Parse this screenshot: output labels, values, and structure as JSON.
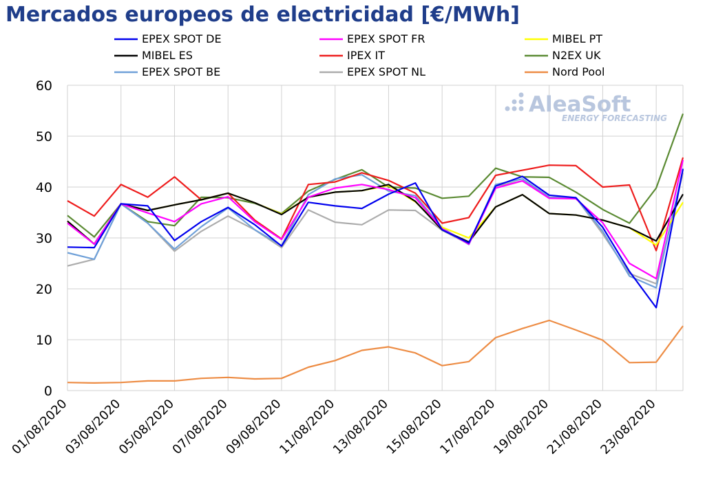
{
  "chart_data": {
    "type": "line",
    "title": "Mercados europeos de electricidad [€/MWh]",
    "xlabel": "",
    "ylabel": "",
    "ylim": [
      0,
      60
    ],
    "yticks": [
      0,
      10,
      20,
      30,
      40,
      50,
      60
    ],
    "grid": true,
    "legend_position": "top",
    "x": [
      "01/08/2020",
      "02/08/2020",
      "03/08/2020",
      "04/08/2020",
      "05/08/2020",
      "06/08/2020",
      "07/08/2020",
      "08/08/2020",
      "09/08/2020",
      "10/08/2020",
      "11/08/2020",
      "12/08/2020",
      "13/08/2020",
      "14/08/2020",
      "15/08/2020",
      "16/08/2020",
      "17/08/2020",
      "18/08/2020",
      "19/08/2020",
      "20/08/2020",
      "21/08/2020",
      "22/08/2020",
      "23/08/2020",
      "24/08/2020"
    ],
    "x_tick_labels": [
      "01/08/2020",
      "03/08/2020",
      "05/08/2020",
      "07/08/2020",
      "09/08/2020",
      "11/08/2020",
      "13/08/2020",
      "15/08/2020",
      "17/08/2020",
      "19/08/2020",
      "21/08/2020",
      "23/08/2020"
    ],
    "series": [
      {
        "name": "EPEX SPOT DE",
        "color": "#0000ee",
        "values": [
          28.2,
          28.1,
          36.7,
          36.3,
          29.5,
          33.2,
          36.0,
          32.6,
          28.4,
          37.0,
          36.3,
          35.8,
          38.6,
          40.8,
          31.6,
          29.0,
          40.2,
          42.1,
          38.4,
          37.9,
          32.1,
          23.4,
          16.3,
          43.6
        ]
      },
      {
        "name": "EPEX SPOT FR",
        "color": "#ff00ff",
        "values": [
          32.9,
          28.8,
          36.7,
          34.9,
          33.2,
          36.7,
          38.1,
          33.2,
          29.7,
          38.0,
          39.8,
          40.5,
          39.5,
          37.9,
          31.8,
          28.8,
          39.8,
          41.2,
          37.8,
          37.7,
          33.0,
          25.0,
          22.0,
          45.3
        ]
      },
      {
        "name": "MIBEL PT",
        "color": "#ffff00",
        "values": [
          33.3,
          28.8,
          36.7,
          35.4,
          36.5,
          37.5,
          38.8,
          36.9,
          34.7,
          38.0,
          39.0,
          39.3,
          40.3,
          37.1,
          32.1,
          30.0,
          36.1,
          38.5,
          34.8,
          34.5,
          33.5,
          32.0,
          28.6,
          37.0
        ]
      },
      {
        "name": "MIBEL ES",
        "color": "#000000",
        "values": [
          33.3,
          28.8,
          36.7,
          35.4,
          36.5,
          37.5,
          38.8,
          36.9,
          34.6,
          38.0,
          39.0,
          39.3,
          40.5,
          37.2,
          31.6,
          29.2,
          36.1,
          38.5,
          34.8,
          34.5,
          33.5,
          32.0,
          29.4,
          38.6
        ]
      },
      {
        "name": "IPEX IT",
        "color": "#ee1c1c",
        "values": [
          37.3,
          34.3,
          40.5,
          38.0,
          42.0,
          37.5,
          38.8,
          33.5,
          29.8,
          40.5,
          41.0,
          42.8,
          41.3,
          38.8,
          32.9,
          34.0,
          42.3,
          43.3,
          44.3,
          44.2,
          40.0,
          40.4,
          27.5,
          45.8
        ]
      },
      {
        "name": "N2EX UK",
        "color": "#5a8a32",
        "values": [
          34.4,
          30.2,
          36.7,
          33.2,
          32.4,
          38.0,
          37.9,
          36.8,
          34.8,
          39.2,
          41.5,
          43.4,
          40.0,
          39.8,
          37.8,
          38.2,
          43.7,
          42.0,
          41.9,
          39.0,
          35.6,
          32.9,
          39.8,
          54.4
        ]
      },
      {
        "name": "EPEX SPOT BE",
        "color": "#6fa0d8",
        "values": [
          27.1,
          25.8,
          36.7,
          32.9,
          27.8,
          32.2,
          35.9,
          31.6,
          28.5,
          38.5,
          41.6,
          42.4,
          39.2,
          38.3,
          32.0,
          28.7,
          40.5,
          41.6,
          38.0,
          37.9,
          31.3,
          22.5,
          20.2,
          43.4
        ]
      },
      {
        "name": "EPEX SPOT NL",
        "color": "#acacac",
        "values": [
          24.5,
          25.8,
          36.7,
          32.9,
          27.4,
          31.3,
          34.3,
          31.6,
          28.1,
          35.5,
          33.1,
          32.6,
          35.5,
          35.4,
          31.5,
          28.8,
          40.2,
          41.2,
          38.0,
          37.9,
          30.8,
          23.0,
          21.0,
          42.8
        ]
      },
      {
        "name": "Nord Pool",
        "color": "#ed8c44",
        "values": [
          1.6,
          1.5,
          1.6,
          1.9,
          1.9,
          2.4,
          2.6,
          2.3,
          2.4,
          4.6,
          5.9,
          7.9,
          8.6,
          7.4,
          4.9,
          5.7,
          10.4,
          12.2,
          13.8,
          11.9,
          9.9,
          5.5,
          5.6,
          12.7
        ]
      }
    ]
  },
  "branding": {
    "logo_main": "AleaSoft",
    "logo_sub": "ENERGY FORECASTING",
    "logo_color": "#b8c6de"
  }
}
